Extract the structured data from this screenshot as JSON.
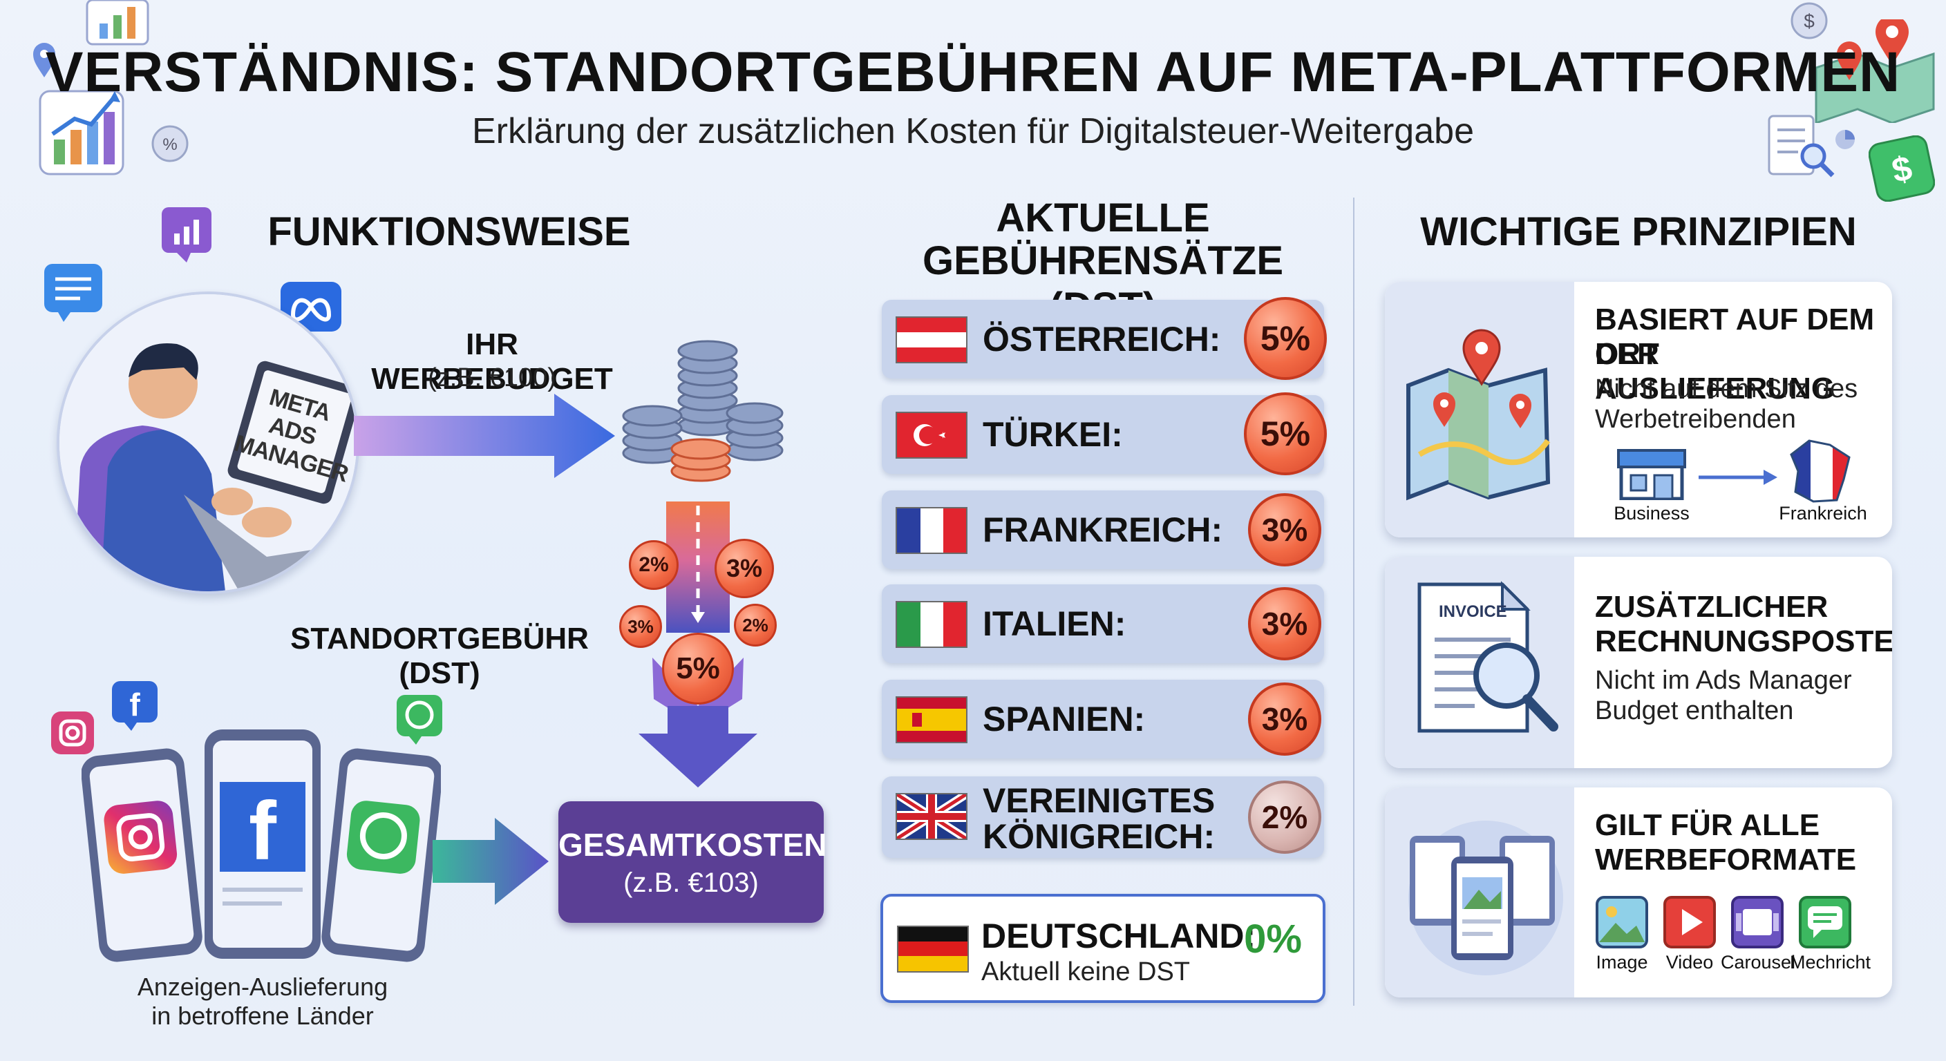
{
  "header": {
    "title": "VERSTÄNDNIS: STANDORTGEBÜHREN AUF META-PLATTFORMEN",
    "subtitle": "Erklärung der zusätzlichen Kosten für Digitalsteuer-Weitergabe"
  },
  "funktionsweise": {
    "heading": "FUNKTIONSWEISE",
    "screen_text": "META ADS MANAGER",
    "budget_label": "IHR WERBEBUDGET",
    "budget_example": "(z.B. €100)",
    "fee_label": "STANDORTGEBÜHR (DST)",
    "fee_coins": [
      "2%",
      "3%",
      "3%",
      "2%",
      "5%"
    ],
    "total_label": "GESAMTKOSTEN",
    "total_example": "(z.B. €103)",
    "delivery_caption_line1": "Anzeigen-Auslieferung",
    "delivery_caption_line2": "in betroffene Länder"
  },
  "rates": {
    "heading_line1": "AKTUELLE",
    "heading_line2": "GEBÜHRENSÄTZE (DST)",
    "rows": [
      {
        "country": "ÖSTERREICH:",
        "rate": "5%"
      },
      {
        "country": "TÜRKEI:",
        "rate": "5%"
      },
      {
        "country": "FRANKREICH:",
        "rate": "3%"
      },
      {
        "country": "ITALIEN:",
        "rate": "3%"
      },
      {
        "country": "SPANIEN:",
        "rate": "3%"
      },
      {
        "country_line1": "VEREINIGTES",
        "country_line2": "KÖNIGREICH:",
        "rate": "2%"
      }
    ],
    "germany": {
      "country": "DEUTSCHLAND:",
      "rate": "0%",
      "note": "Aktuell keine DST"
    }
  },
  "principles": {
    "heading": "WICHTIGE PRINZIPIEN",
    "cards": [
      {
        "title_line1": "BASIERT AUF DEM ORT",
        "title_line2": "DER AUSLIEFERUNG",
        "text_line1": "Nicht auf dem Sitz des",
        "text_line2": "Werbetreibenden",
        "from": "Business",
        "to": "Frankreich"
      },
      {
        "title_line1": "ZUSÄTZLICHER",
        "title_line2": "RECHNUNGSPOSTEN",
        "text_line1": "Nicht im Ads Manager",
        "text_line2": "Budget enthalten",
        "doc_label": "INVOICE"
      },
      {
        "title_line1": "GILT FÜR ALLE",
        "title_line2": "WERBEFORMATE",
        "formats": [
          "Image",
          "Video",
          "Carousel",
          "Mechricht"
        ]
      }
    ]
  },
  "colors": {
    "coin_orange": "#f26a45",
    "zero_green": "#2f9a3a",
    "total_purple": "#5b3f95",
    "arrow_blue": "#4a6fd0"
  }
}
